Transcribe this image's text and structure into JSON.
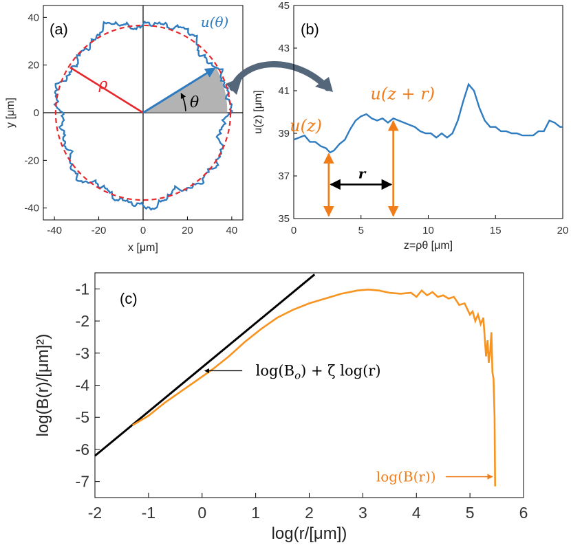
{
  "chart_data": [
    {
      "type": "scatter",
      "panel_label": "(a)",
      "xlabel": "x [μm]",
      "ylabel": "y [μm]",
      "xlim": [
        -45,
        45
      ],
      "ylim": [
        -45,
        45
      ],
      "xticks": [
        -40,
        -20,
        0,
        20,
        40
      ],
      "yticks": [
        -40,
        -20,
        0,
        20,
        40
      ],
      "radius": 38,
      "wedge_angle_deg": 30,
      "annotations": {
        "rho": "ρ",
        "theta": "θ",
        "u_theta": "u(θ)"
      },
      "colors": {
        "contour": "#2f7bbf",
        "circle": "#e8262b",
        "radius_line": "#e8262b",
        "u_arrow": "#2f7bbf",
        "wedge": "#9a9a9a"
      }
    },
    {
      "type": "line",
      "panel_label": "(b)",
      "xlabel": "z=ρθ [μm]",
      "ylabel": "u(z) [μm]",
      "xlim": [
        0,
        20
      ],
      "ylim": [
        35,
        45
      ],
      "xticks": [
        0,
        5,
        10,
        15,
        20
      ],
      "yticks": [
        35,
        37,
        39,
        41,
        43,
        45
      ],
      "series": [
        {
          "x": [
            0,
            0.4,
            0.8,
            1.2,
            1.6,
            2.0,
            2.4,
            2.7,
            3.0,
            3.4,
            3.8,
            4.2,
            4.6,
            5.0,
            5.4,
            5.8,
            6.2,
            6.6,
            7.0,
            7.4,
            7.8,
            8.2,
            8.6,
            9.0,
            9.4,
            9.8,
            10.2,
            10.6,
            11.0,
            11.4,
            11.8,
            12.2,
            12.6,
            13.0,
            13.4,
            13.8,
            14.2,
            14.6,
            15.0,
            15.4,
            15.8,
            16.2,
            16.6,
            17.0,
            17.4,
            17.8,
            18.2,
            18.6,
            19.0,
            19.4,
            19.8,
            20.0
          ],
          "y": [
            38.7,
            38.8,
            38.9,
            38.6,
            38.6,
            38.4,
            38.3,
            38.1,
            38.2,
            38.5,
            38.7,
            39.2,
            39.6,
            39.8,
            39.9,
            39.7,
            39.6,
            39.7,
            39.5,
            39.7,
            39.6,
            39.5,
            39.4,
            39.3,
            39.1,
            39.0,
            39.0,
            38.8,
            39.0,
            38.8,
            39.0,
            39.6,
            40.5,
            41.3,
            41.0,
            40.2,
            39.6,
            39.3,
            39.3,
            39.1,
            39.1,
            39.0,
            39.0,
            38.9,
            38.9,
            38.9,
            39.1,
            39.1,
            39.6,
            39.5,
            39.3,
            39.3
          ]
        }
      ],
      "annotations": {
        "uz": "u(z)",
        "uzr": "u(z + r)",
        "r": "r",
        "uz_at": 2.6,
        "uzr_at": 7.4
      },
      "colors": {
        "line": "#2f7bbf",
        "arrows": "#f07d1a",
        "r_arrow": "#000000"
      }
    },
    {
      "type": "line",
      "panel_label": "(c)",
      "xlabel": "log(r/[μm])",
      "ylabel": "log(B(r)/[μm]²)",
      "xlim": [
        -2,
        6
      ],
      "ylim": [
        -7.5,
        -0.5
      ],
      "xticks": [
        -2,
        -1,
        0,
        1,
        2,
        3,
        4,
        5,
        6
      ],
      "yticks": [
        -1,
        -2,
        -3,
        -4,
        -5,
        -6,
        -7
      ],
      "series": [
        {
          "x": [
            -1.3,
            -1.0,
            -0.7,
            -0.4,
            -0.1,
            0.2,
            0.5,
            0.8,
            1.1,
            1.4,
            1.7,
            2.0,
            2.3,
            2.6,
            2.9,
            3.1,
            3.3,
            3.5,
            3.7,
            3.9,
            4.0,
            4.1,
            4.2,
            4.3,
            4.4,
            4.5,
            4.6,
            4.7,
            4.8,
            4.9,
            5.0,
            5.05,
            5.1,
            5.15,
            5.2,
            5.25,
            5.3,
            5.33,
            5.35,
            5.38,
            5.4,
            5.42,
            5.44,
            5.46,
            5.47
          ],
          "y": [
            -5.25,
            -4.95,
            -4.55,
            -4.2,
            -3.85,
            -3.5,
            -3.1,
            -2.65,
            -2.25,
            -1.9,
            -1.65,
            -1.45,
            -1.3,
            -1.15,
            -1.05,
            -1.02,
            -1.05,
            -1.12,
            -1.15,
            -1.12,
            -1.25,
            -1.05,
            -1.2,
            -1.1,
            -1.25,
            -1.2,
            -1.3,
            -1.25,
            -1.5,
            -1.45,
            -1.8,
            -1.7,
            -2.0,
            -1.8,
            -2.1,
            -1.9,
            -3.1,
            -2.6,
            -3.3,
            -2.9,
            -2.35,
            -3.6,
            -3.8,
            -5.0,
            -7.15
          ]
        },
        {
          "fit_x": [
            -2.0,
            2.1
          ],
          "fit_y": [
            -6.2,
            -0.55
          ]
        }
      ],
      "annotations": {
        "fit": "log(B",
        "fit_sub": "o",
        "fit_rest": ") + ζ log(r)",
        "data": "log(B(r))"
      },
      "colors": {
        "data": "#f7931e",
        "fit": "#000000"
      }
    }
  ]
}
